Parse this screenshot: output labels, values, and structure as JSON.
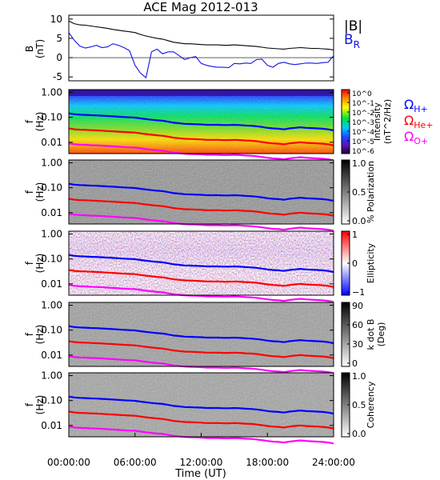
{
  "chart_data": {
    "type": "spectrogram",
    "title": "ACE Mag 2012-013",
    "xlabel": "Time (UT)",
    "x_tick_labels": [
      "00:00:00",
      "06:00:00",
      "12:00:00",
      "18:00:00",
      "24:00:00"
    ],
    "x_range_hours": [
      0,
      24
    ],
    "legend": {
      "btot": "|B|",
      "br": "B",
      "br_sub": "R"
    },
    "colors": {
      "btot": "#000000",
      "br": "#1414e6",
      "h": "#0000ff",
      "he": "#ff0000",
      "o": "#ff00ff"
    },
    "field_panel": {
      "ylabel": "B",
      "ylabel2": "(nT)",
      "ylim": [
        -6,
        11
      ],
      "y_ticks": [
        -5,
        0,
        5,
        10
      ],
      "btot": {
        "x": [
          0,
          0.5,
          1,
          1.5,
          2,
          2.5,
          3,
          3.5,
          4,
          4.5,
          5,
          5.5,
          6,
          6.5,
          7,
          7.5,
          8,
          8.5,
          9,
          9.5,
          10,
          10.5,
          11,
          11.5,
          12,
          12.5,
          13,
          13.5,
          14,
          14.5,
          15,
          15.5,
          16,
          16.5,
          17,
          17.5,
          18,
          18.5,
          19,
          19.5,
          20,
          20.5,
          21,
          21.5,
          22,
          22.5,
          23,
          23.5,
          24
        ],
        "y": [
          9.5,
          8.8,
          8.5,
          8.4,
          8.2,
          8.0,
          7.8,
          7.6,
          7.3,
          7.1,
          6.9,
          6.7,
          6.5,
          6.0,
          5.6,
          5.3,
          5.0,
          4.8,
          4.4,
          4.0,
          3.8,
          3.6,
          3.6,
          3.5,
          3.4,
          3.3,
          3.3,
          3.3,
          3.2,
          3.2,
          3.3,
          3.2,
          3.1,
          3.0,
          2.9,
          2.7,
          2.5,
          2.4,
          2.3,
          2.2,
          2.4,
          2.5,
          2.6,
          2.5,
          2.4,
          2.4,
          2.3,
          2.2,
          2.0
        ]
      },
      "br": {
        "x": [
          0,
          0.5,
          1,
          1.5,
          2,
          2.5,
          3,
          3.5,
          4,
          4.5,
          5,
          5.5,
          6,
          6.5,
          7,
          7.5,
          8,
          8.5,
          9,
          9.5,
          10,
          10.5,
          11,
          11.5,
          12,
          12.5,
          13,
          13.5,
          14,
          14.5,
          15,
          15.5,
          16,
          16.5,
          17,
          17.5,
          18,
          18.5,
          19,
          19.5,
          20,
          20.5,
          21,
          21.5,
          22,
          22.5,
          23,
          23.5,
          24
        ],
        "y": [
          6.5,
          4.5,
          3.0,
          2.5,
          2.8,
          3.2,
          2.6,
          2.8,
          3.6,
          3.2,
          2.6,
          1.8,
          -2.0,
          -4.0,
          -5.2,
          1.5,
          2.2,
          1.0,
          1.5,
          1.5,
          0.5,
          -0.5,
          0.0,
          0.3,
          -1.5,
          -2.0,
          -2.3,
          -2.5,
          -2.5,
          -2.6,
          -1.5,
          -1.6,
          -1.4,
          -1.5,
          -0.5,
          -0.4,
          -2.0,
          -2.5,
          -1.5,
          -1.2,
          -1.6,
          -1.8,
          -1.6,
          -1.4,
          -1.4,
          -1.5,
          -1.3,
          -1.2,
          0.5
        ]
      }
    },
    "freq_panels": [
      {
        "id": "intensity",
        "ylabel": "f",
        "ylabel2": "(Hz)",
        "y_tick_labels": [
          "1.00",
          "0.10",
          "0.01"
        ],
        "colorbar": "rainbow",
        "cb_tick_labels": [
          "10^0",
          "10^-1",
          "10^-2",
          "10^-3",
          "10^-4",
          "10^-5",
          "10^-6"
        ],
        "cb_label": "Intensity",
        "cb_label2": "(nT^2/Hz)"
      },
      {
        "id": "polarization",
        "ylabel": "f",
        "ylabel2": "(Hz)",
        "y_tick_labels": [
          "1.00",
          "0.10",
          "0.01"
        ],
        "colorbar": "gray",
        "cb_tick_labels": [
          "1.0",
          "0.5",
          "0.0"
        ],
        "cb_label": "% Polarization"
      },
      {
        "id": "ellipticity",
        "ylabel": "f",
        "ylabel2": "(Hz)",
        "y_tick_labels": [
          "1.00",
          "0.10",
          "0.01"
        ],
        "colorbar": "bwr",
        "cb_tick_labels": [
          "1",
          "0",
          "−1"
        ],
        "cb_label": "Ellipticity"
      },
      {
        "id": "kdotb",
        "ylabel": "f",
        "ylabel2": "(Hz)",
        "y_tick_labels": [
          "1.00",
          "0.10",
          "0.01"
        ],
        "colorbar": "gray",
        "cb_tick_labels": [
          "90",
          "60",
          "30",
          "0"
        ],
        "cb_label": "k dot B",
        "cb_label2": "(Deg)"
      },
      {
        "id": "coherency",
        "ylabel": "f",
        "ylabel2": "(Hz)",
        "y_tick_labels": [
          "1.00",
          "0.10",
          "0.01"
        ],
        "colorbar": "gray",
        "cb_tick_labels": [
          "1.0",
          "0.5",
          "0.0"
        ],
        "cb_label": "Coherency"
      }
    ],
    "gyro_legend": [
      {
        "symbol": "Ω",
        "sub": "H+",
        "color": "#0000ff"
      },
      {
        "symbol": "Ω",
        "sub": "He+",
        "color": "#ff0000"
      },
      {
        "symbol": "Ω",
        "sub": "O+",
        "color": "#ff00ff"
      }
    ],
    "gyrofrequency_hz": {
      "x": [
        0,
        0.5,
        1,
        1.5,
        2,
        2.5,
        3,
        3.5,
        4,
        4.5,
        5,
        5.5,
        6,
        6.5,
        7,
        7.5,
        8,
        8.5,
        9,
        9.5,
        10,
        10.5,
        11,
        11.5,
        12,
        12.5,
        13,
        13.5,
        14,
        14.5,
        15,
        15.5,
        16,
        16.5,
        17,
        17.5,
        18,
        18.5,
        19,
        19.5,
        20,
        20.5,
        21,
        21.5,
        22,
        22.5,
        23,
        23.5,
        24
      ],
      "h": [
        0.145,
        0.133,
        0.128,
        0.126,
        0.122,
        0.12,
        0.117,
        0.113,
        0.11,
        0.106,
        0.103,
        0.1,
        0.098,
        0.091,
        0.085,
        0.08,
        0.076,
        0.073,
        0.067,
        0.061,
        0.058,
        0.055,
        0.054,
        0.053,
        0.052,
        0.05,
        0.05,
        0.05,
        0.049,
        0.049,
        0.05,
        0.049,
        0.047,
        0.046,
        0.044,
        0.041,
        0.038,
        0.036,
        0.035,
        0.033,
        0.036,
        0.038,
        0.04,
        0.038,
        0.037,
        0.036,
        0.035,
        0.033,
        0.03
      ]
    }
  }
}
